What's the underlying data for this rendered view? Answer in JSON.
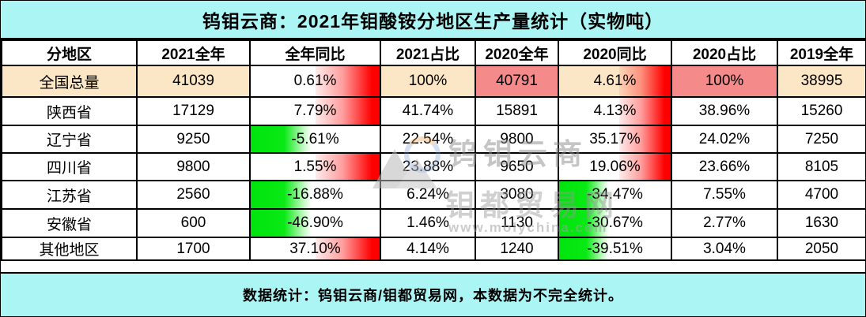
{
  "chart_data": {
    "type": "table",
    "title": "钨钼云商：2021年钼酸铵分地区生产量统计（实物吨）",
    "columns": [
      "分地区",
      "2021全年",
      "全年同比",
      "2021占比",
      "2020全年",
      "2020同比",
      "2020占比",
      "2019全年"
    ],
    "rows": [
      [
        "全国总量",
        "41039",
        "0.61%",
        "100%",
        "40791",
        "4.61%",
        "100%",
        "38995"
      ],
      [
        "陕西省",
        "17129",
        "7.79%",
        "41.74%",
        "15891",
        "4.13%",
        "38.96%",
        "15260"
      ],
      [
        "辽宁省",
        "9250",
        "-5.61%",
        "22.54%",
        "9800",
        "35.17%",
        "24.02%",
        "7250"
      ],
      [
        "四川省",
        "9800",
        "1.55%",
        "23.88%",
        "9650",
        "19.06%",
        "23.66%",
        "8105"
      ],
      [
        "江苏省",
        "2560",
        "-16.88%",
        "6.24%",
        "3080",
        "-34.47%",
        "7.55%",
        "4700"
      ],
      [
        "安徽省",
        "600",
        "-46.90%",
        "1.46%",
        "1130",
        "-30.67%",
        "2.77%",
        "1630"
      ],
      [
        "其他地区",
        "1700",
        "37.10%",
        "4.14%",
        "1240",
        "-39.51%",
        "3.04%",
        "2050"
      ]
    ],
    "note": "数据统计：钨钼云商/钼都贸易网，本数据为不完全统计。",
    "layout_hints": {
      "highlight_row": "全国总量",
      "bar_columns": [
        "全年同比",
        "2020同比"
      ],
      "positive_bar": "red gradient, right-aligned",
      "negative_bar": "green gradient, left-aligned"
    }
  },
  "watermark": {
    "brand": "钨钼云商",
    "site": "钼都贸易网",
    "url": "www.molychina.com"
  },
  "colors": {
    "banner_cyan": "#ABF5F5",
    "total_row_cream": "#FBE7C6",
    "highlight_salmon": "#F48A8A",
    "bar_positive_red": "#FF0000",
    "bar_negative_green": "#00E40C",
    "grid_border": "#000000",
    "text": "#000000"
  }
}
